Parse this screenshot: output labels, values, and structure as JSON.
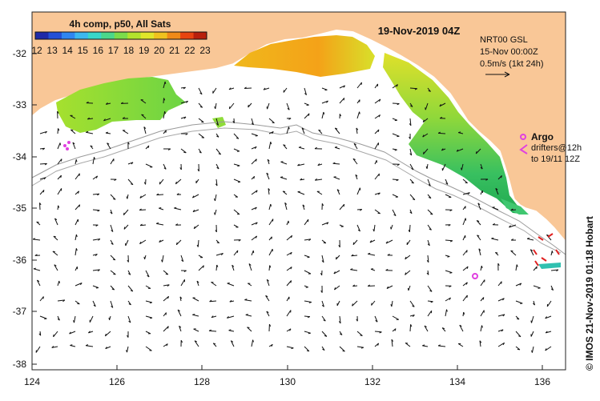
{
  "map": {
    "date_title": "19-Nov-2019 04Z",
    "colorbar_title": "4h comp, p50, All Sats",
    "colorbar_ticks": [
      "12",
      "13",
      "14",
      "15",
      "16",
      "17",
      "18",
      "19",
      "20",
      "21",
      "22",
      "23"
    ],
    "colorbar_colors": [
      "#1f2aa8",
      "#2350d6",
      "#2f86f0",
      "#3cb8ee",
      "#38d7c9",
      "#4bd88a",
      "#7bdc4a",
      "#b3e22c",
      "#e0e62a",
      "#f0c21e",
      "#f08a18",
      "#e84410",
      "#b8200c"
    ],
    "info_lines": [
      "NRT00 GSL",
      "15-Nov 00:00Z",
      "0.5m/s (1kt 24h)"
    ],
    "argo_label": "Argo",
    "drifter_label": "drifters@12h",
    "drifter_sublabel": "to 19/11 12Z",
    "credit": "© IMOS 21-Nov-2019 01:18 Hobart",
    "lon_ticks": [
      "124",
      "126",
      "128",
      "130",
      "132",
      "134",
      "136"
    ],
    "lat_ticks": [
      "-32",
      "-33",
      "-34",
      "-35",
      "-36",
      "-37",
      "-38"
    ],
    "colors": {
      "land": "#f9c797",
      "argo": "#e040e0",
      "drifter": "#e02020",
      "contour": "#9a9a9a"
    }
  }
}
